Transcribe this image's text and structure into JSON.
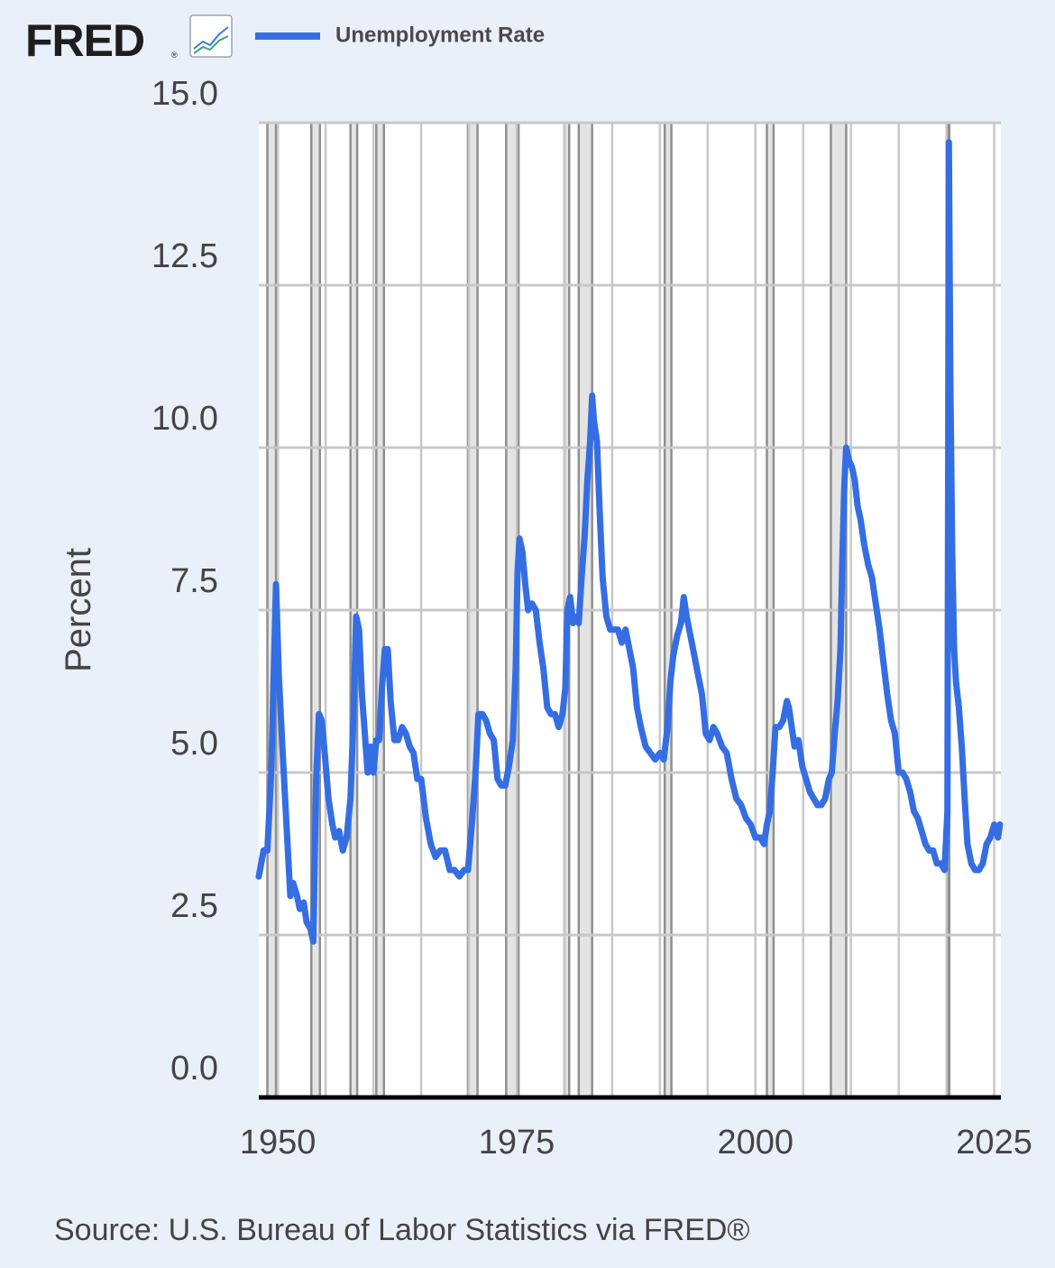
{
  "brand": {
    "logo_text": "FRED",
    "logo_icon": "trend-chart-icon"
  },
  "legend": {
    "series_label": "Unemployment Rate",
    "swatch_color": "#346ee2"
  },
  "source": "Source: U.S. Bureau of Labor Statistics via FRED®",
  "colors": {
    "background": "#e9f0f9",
    "plot_background": "#ffffff",
    "grid": "#c8c8c8",
    "recession_fill": "#e4e4e4",
    "recession_edge": "#8f8f8f",
    "line": "#346ee2",
    "axis": "#000000",
    "text": "#444444"
  },
  "chart_data": {
    "type": "line",
    "title": "",
    "xlabel": "",
    "ylabel": "Percent",
    "xlim": [
      1948.0,
      2025.7
    ],
    "ylim": [
      0,
      15
    ],
    "y_ticks": [
      "0.0",
      "2.5",
      "5.0",
      "7.5",
      "10.0",
      "12.5",
      "15.0"
    ],
    "x_ticks": [
      "1950",
      "1975",
      "2000",
      "2025"
    ],
    "grid": true,
    "recession_shading": true,
    "recessions": [
      [
        1948.9,
        1949.8
      ],
      [
        1953.5,
        1954.4
      ],
      [
        1957.6,
        1958.3
      ],
      [
        1960.3,
        1961.1
      ],
      [
        1969.9,
        1970.9
      ],
      [
        1973.9,
        1975.2
      ],
      [
        1980.0,
        1980.5
      ],
      [
        1981.5,
        1982.9
      ],
      [
        1990.5,
        1991.2
      ],
      [
        2001.2,
        2001.9
      ],
      [
        2007.9,
        2009.5
      ],
      [
        2020.1,
        2020.3
      ]
    ],
    "series": [
      {
        "name": "Unemployment Rate",
        "x": [
          1948.0,
          1948.5,
          1948.9,
          1949.3,
          1949.8,
          1950.1,
          1950.5,
          1950.9,
          1951.3,
          1951.6,
          1952.0,
          1952.3,
          1952.7,
          1953.0,
          1953.4,
          1953.7,
          1954.0,
          1954.3,
          1954.6,
          1954.9,
          1955.3,
          1955.7,
          1956.0,
          1956.4,
          1956.8,
          1957.2,
          1957.6,
          1957.9,
          1958.2,
          1958.5,
          1958.8,
          1959.1,
          1959.4,
          1959.7,
          1960.0,
          1960.3,
          1960.6,
          1960.9,
          1961.2,
          1961.5,
          1961.8,
          1962.2,
          1962.6,
          1963.0,
          1963.4,
          1963.8,
          1964.2,
          1964.6,
          1965.0,
          1965.5,
          1966.0,
          1966.5,
          1967.0,
          1967.5,
          1968.0,
          1968.5,
          1969.0,
          1969.5,
          1969.9,
          1970.3,
          1970.7,
          1971.0,
          1971.4,
          1971.8,
          1972.2,
          1972.6,
          1973.0,
          1973.4,
          1973.8,
          1974.2,
          1974.6,
          1974.9,
          1975.1,
          1975.3,
          1975.6,
          1975.9,
          1976.2,
          1976.6,
          1977.0,
          1977.4,
          1977.8,
          1978.2,
          1978.6,
          1979.0,
          1979.4,
          1979.8,
          1980.1,
          1980.3,
          1980.6,
          1980.9,
          1981.2,
          1981.5,
          1981.8,
          1982.1,
          1982.4,
          1982.7,
          1982.9,
          1983.1,
          1983.4,
          1983.7,
          1984.0,
          1984.4,
          1984.8,
          1985.2,
          1985.6,
          1986.0,
          1986.4,
          1986.8,
          1987.2,
          1987.6,
          1988.0,
          1988.5,
          1989.0,
          1989.5,
          1990.0,
          1990.4,
          1990.8,
          1991.1,
          1991.4,
          1991.8,
          1992.2,
          1992.5,
          1992.8,
          1993.2,
          1993.6,
          1994.0,
          1994.4,
          1994.8,
          1995.2,
          1995.6,
          1996.0,
          1996.5,
          1997.0,
          1997.5,
          1998.0,
          1998.5,
          1999.0,
          1999.5,
          2000.0,
          2000.5,
          2000.9,
          2001.2,
          2001.5,
          2001.8,
          2002.1,
          2002.5,
          2002.9,
          2003.3,
          2003.5,
          2003.8,
          2004.1,
          2004.5,
          2004.9,
          2005.3,
          2005.7,
          2006.1,
          2006.5,
          2006.9,
          2007.3,
          2007.7,
          2008.0,
          2008.3,
          2008.6,
          2008.9,
          2009.1,
          2009.3,
          2009.5,
          2009.8,
          2010.1,
          2010.4,
          2010.7,
          2011.0,
          2011.4,
          2011.8,
          2012.2,
          2012.6,
          2013.0,
          2013.4,
          2013.8,
          2014.2,
          2014.6,
          2015.0,
          2015.4,
          2015.8,
          2016.2,
          2016.6,
          2017.0,
          2017.4,
          2017.8,
          2018.2,
          2018.6,
          2019.0,
          2019.4,
          2019.8,
          2020.1,
          2020.25,
          2020.4,
          2020.6,
          2020.8,
          2021.0,
          2021.3,
          2021.6,
          2021.9,
          2022.2,
          2022.6,
          2023.0,
          2023.4,
          2023.8,
          2024.2,
          2024.6,
          2025.0,
          2025.4,
          2025.6
        ],
        "y": [
          3.4,
          3.8,
          3.8,
          5.0,
          7.9,
          6.5,
          5.3,
          4.2,
          3.1,
          3.3,
          3.1,
          2.9,
          3.0,
          2.7,
          2.6,
          2.4,
          4.9,
          5.9,
          5.8,
          5.3,
          4.6,
          4.2,
          4.0,
          4.1,
          3.8,
          4.0,
          4.6,
          5.8,
          7.4,
          7.2,
          6.2,
          5.6,
          5.0,
          5.4,
          5.0,
          5.5,
          5.5,
          6.3,
          6.9,
          6.9,
          6.1,
          5.5,
          5.5,
          5.7,
          5.6,
          5.4,
          5.3,
          4.9,
          4.9,
          4.3,
          3.9,
          3.7,
          3.8,
          3.8,
          3.5,
          3.5,
          3.4,
          3.5,
          3.5,
          4.2,
          5.0,
          5.9,
          5.9,
          5.8,
          5.6,
          5.5,
          4.9,
          4.8,
          4.8,
          5.1,
          5.5,
          6.6,
          8.1,
          8.6,
          8.4,
          7.9,
          7.5,
          7.6,
          7.5,
          7.0,
          6.6,
          6.0,
          5.9,
          5.9,
          5.7,
          5.9,
          6.3,
          7.5,
          7.7,
          7.3,
          7.4,
          7.3,
          8.0,
          8.6,
          9.5,
          10.1,
          10.8,
          10.4,
          10.1,
          9.0,
          8.0,
          7.4,
          7.2,
          7.2,
          7.2,
          7.0,
          7.2,
          6.9,
          6.6,
          6.0,
          5.7,
          5.4,
          5.3,
          5.2,
          5.3,
          5.2,
          5.7,
          6.4,
          6.8,
          7.1,
          7.3,
          7.7,
          7.4,
          7.1,
          6.8,
          6.5,
          6.2,
          5.6,
          5.5,
          5.7,
          5.6,
          5.4,
          5.3,
          4.9,
          4.6,
          4.5,
          4.3,
          4.2,
          4.0,
          4.0,
          3.9,
          4.2,
          4.4,
          5.0,
          5.7,
          5.7,
          5.8,
          6.1,
          6.0,
          5.7,
          5.4,
          5.5,
          5.1,
          4.9,
          4.7,
          4.6,
          4.5,
          4.5,
          4.6,
          4.9,
          5.0,
          5.6,
          6.1,
          6.9,
          8.3,
          9.4,
          10.0,
          9.8,
          9.7,
          9.5,
          9.1,
          8.9,
          8.5,
          8.2,
          8.0,
          7.6,
          7.2,
          6.7,
          6.2,
          5.8,
          5.6,
          5.0,
          5.0,
          4.9,
          4.7,
          4.4,
          4.3,
          4.1,
          3.9,
          3.8,
          3.8,
          3.6,
          3.6,
          3.5,
          4.4,
          14.7,
          11.1,
          8.4,
          6.9,
          6.4,
          6.0,
          5.4,
          4.6,
          3.9,
          3.6,
          3.5,
          3.5,
          3.6,
          3.9,
          4.0,
          4.2,
          4.0,
          4.2
        ]
      }
    ]
  }
}
